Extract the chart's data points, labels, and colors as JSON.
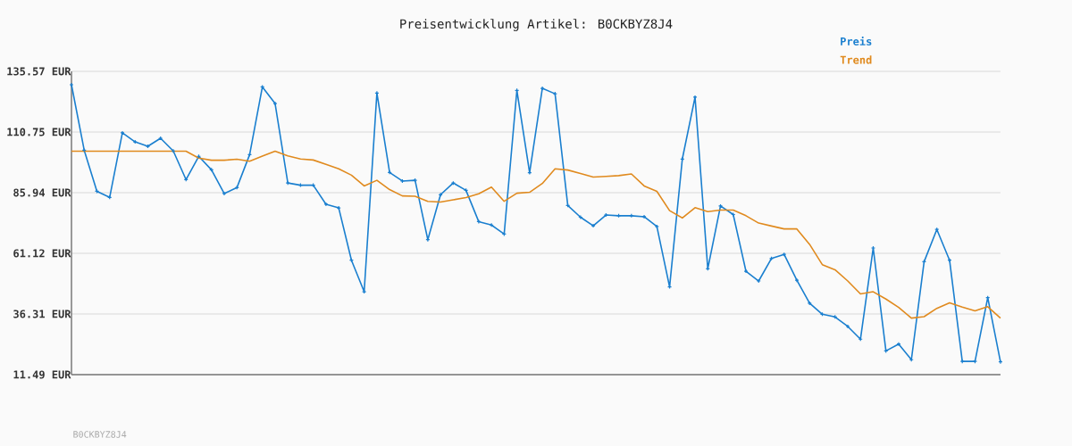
{
  "chart_data": {
    "type": "line",
    "title": "Preisentwicklung Artikel: B0CKBYZ8J4",
    "categories": [
      null,
      null,
      null,
      null,
      null,
      null,
      null,
      null,
      null,
      null,
      null,
      null,
      null,
      null,
      null,
      null,
      null,
      null,
      null,
      null,
      null,
      null,
      null,
      null,
      null,
      null,
      null,
      null,
      null,
      null,
      null,
      null,
      null,
      null,
      null,
      null,
      null,
      null,
      null,
      null,
      null,
      null,
      null,
      null,
      null,
      null,
      null,
      null,
      null,
      null,
      null,
      null,
      null,
      null,
      null,
      null,
      null,
      null,
      null,
      null,
      null,
      null,
      null,
      null,
      null,
      null,
      null,
      null,
      null,
      null,
      null,
      null,
      null,
      null
    ],
    "series": [
      {
        "name": "Preis",
        "color": "#1a7fcf",
        "marker": "cross",
        "values": [
          130.1,
          103.3,
          86.5,
          84.0,
          110.4,
          106.7,
          104.9,
          108.2,
          103.0,
          91.3,
          100.8,
          95.3,
          85.6,
          88.0,
          101.5,
          129.2,
          122.4,
          89.9,
          89.0,
          89.0,
          81.2,
          79.7,
          58.3,
          45.4,
          126.7,
          94.2,
          90.7,
          91.0,
          66.7,
          85.1,
          89.9,
          86.9,
          74.1,
          72.7,
          69.0,
          127.8,
          94.1,
          128.6,
          126.4,
          80.7,
          75.9,
          72.4,
          76.8,
          76.5,
          76.5,
          76.1,
          72.1,
          47.4,
          99.7,
          125.0,
          54.8,
          80.5,
          77.0,
          53.8,
          49.8,
          59.0,
          60.7,
          50.1,
          40.7,
          36.2,
          35.1,
          31.2,
          26.0,
          63.3,
          21.2,
          24.0,
          17.6,
          57.7,
          70.9,
          58.3,
          16.9,
          16.9,
          43.0,
          16.7
        ]
      },
      {
        "name": "Trend",
        "color": "#e08a1e",
        "marker": "none",
        "values": [
          102.9,
          102.9,
          102.9,
          102.9,
          102.9,
          102.9,
          102.9,
          102.9,
          102.9,
          102.9,
          100.1,
          99.2,
          99.2,
          99.6,
          98.8,
          100.9,
          102.9,
          101.0,
          99.7,
          99.3,
          97.5,
          95.7,
          93.1,
          88.7,
          91.0,
          87.2,
          84.6,
          84.5,
          82.4,
          82.1,
          83.0,
          83.9,
          85.5,
          88.2,
          82.4,
          85.7,
          86.1,
          89.7,
          95.7,
          95.2,
          93.8,
          92.3,
          92.6,
          92.9,
          93.6,
          88.7,
          86.5,
          78.6,
          75.6,
          79.8,
          78.2,
          78.8,
          78.8,
          76.5,
          73.5,
          72.3,
          71.1,
          71.1,
          64.8,
          56.5,
          54.4,
          49.8,
          44.5,
          45.4,
          42.4,
          39.0,
          34.6,
          35.2,
          38.6,
          40.9,
          39.1,
          37.6,
          39.3,
          34.6
        ]
      }
    ],
    "ylim": [
      11.49,
      135.57
    ],
    "yticks": [
      {
        "value": 11.49,
        "label": "11.49 EUR"
      },
      {
        "value": 36.31,
        "label": "36.31 EUR"
      },
      {
        "value": 61.12,
        "label": "61.12 EUR"
      },
      {
        "value": 85.94,
        "label": "85.94 EUR"
      },
      {
        "value": 110.75,
        "label": "110.75 EUR"
      },
      {
        "value": 135.57,
        "label": "135.57 EUR"
      }
    ],
    "grid": "y",
    "legend": "top right",
    "line_style": "solid",
    "annotations": [
      "B0CKBYZ8J4"
    ]
  }
}
